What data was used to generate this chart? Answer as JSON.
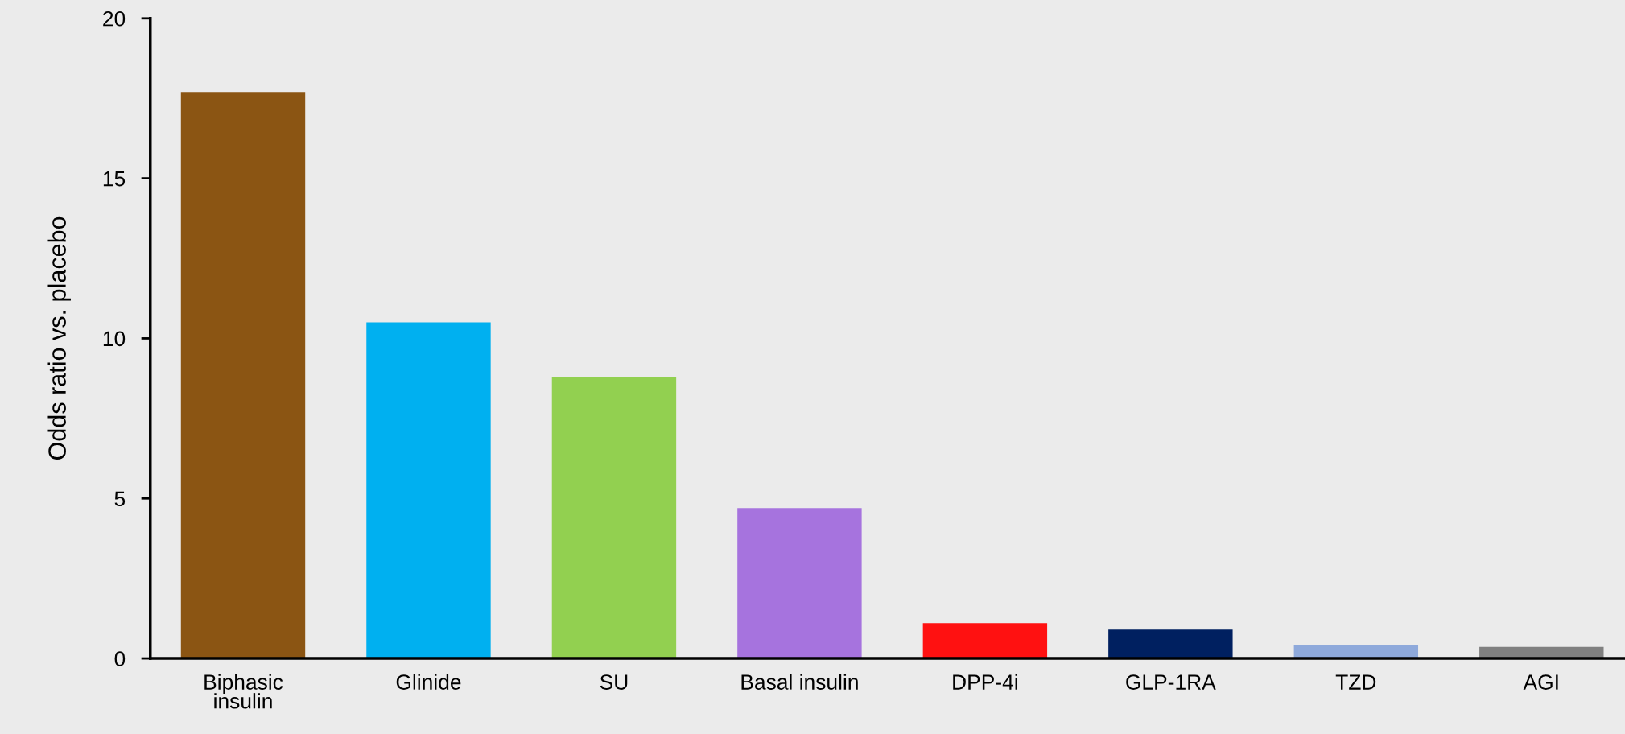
{
  "chart_data": {
    "type": "bar",
    "ylabel": "Odds ratio vs. placebo",
    "categories": [
      "Biphasic\ninsulin",
      "Glinide",
      "SU",
      "Basal insulin",
      "DPP-4i",
      "GLP-1RA",
      "TZD",
      "AGI"
    ],
    "values": [
      17.7,
      10.5,
      8.8,
      4.7,
      1.1,
      0.9,
      0.42,
      0.36
    ],
    "colors": [
      "#8b5513",
      "#00b0f0",
      "#92d050",
      "#a673de",
      "#ff1111",
      "#002060",
      "#8ea9db",
      "#808080"
    ],
    "ylim": [
      0,
      20
    ],
    "yticks": [
      0,
      5,
      10,
      15,
      20
    ],
    "grid": false,
    "legend": false
  }
}
